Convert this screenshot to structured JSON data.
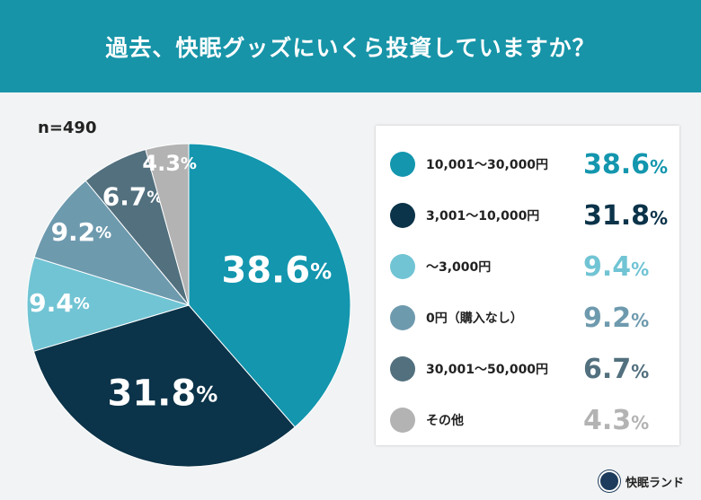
{
  "header": {
    "title": "過去、快眠グッズにいくら投資していますか？"
  },
  "sample": "n=490",
  "chart_data": {
    "type": "pie",
    "unit": "%",
    "start": "top, clockwise",
    "legend_position": "right",
    "categories": [
      "10,001〜30,000円",
      "3,001〜10,000円",
      "〜3,000円",
      "0円（購入なし）",
      "30,001〜50,000円",
      "その他"
    ],
    "values": [
      38.6,
      31.8,
      9.4,
      9.2,
      6.7,
      4.3
    ],
    "labels": [
      "38.6",
      "31.8",
      "9.4",
      "9.2",
      "6.7",
      "4.3"
    ],
    "colors": [
      "#1396ae",
      "#0b3349",
      "#71c4d4",
      "#6e9aae",
      "#52707e",
      "#b3b3b3"
    ]
  },
  "logo": {
    "text": "快眠ランド"
  }
}
